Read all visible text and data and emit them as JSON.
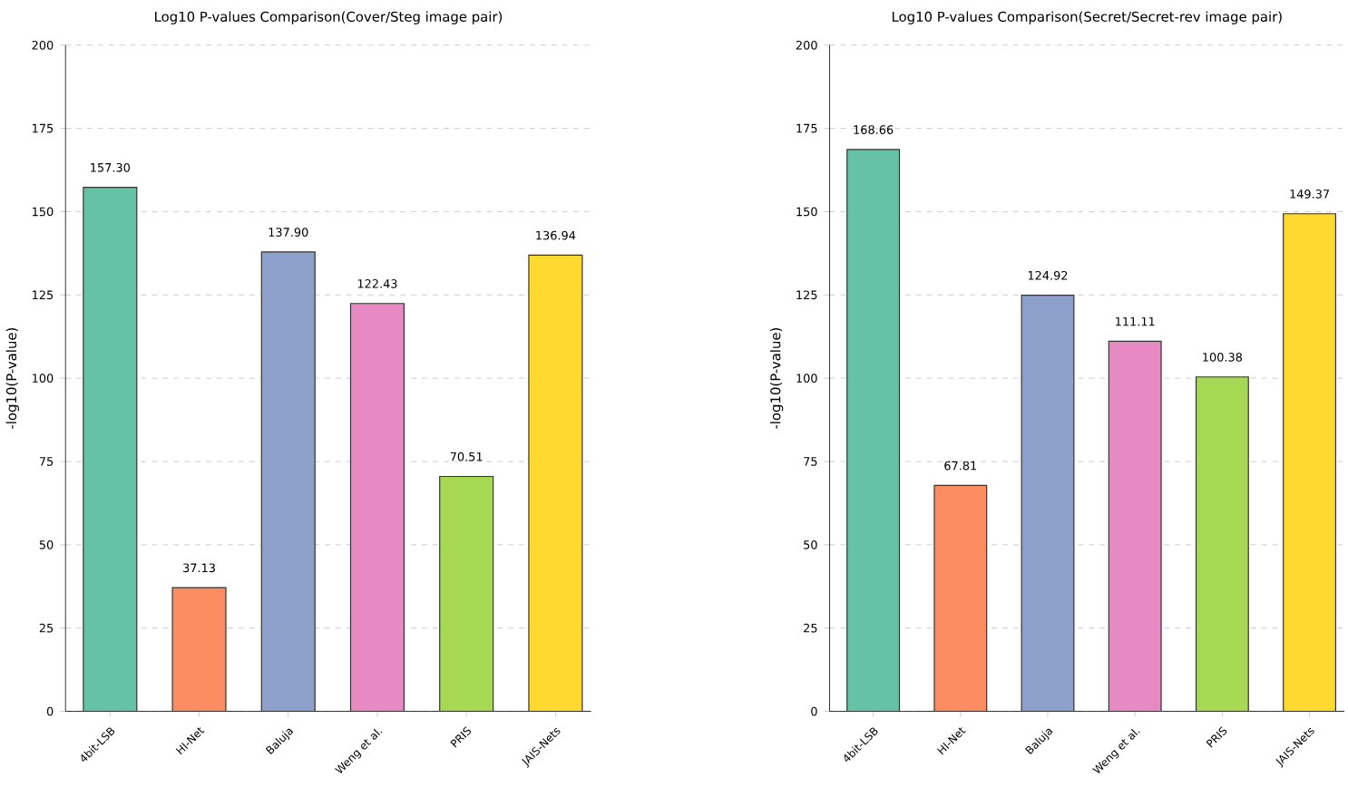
{
  "chart_data": [
    {
      "type": "bar",
      "title": "Log10 P-values Comparison(Cover/Steg image pair)",
      "ylabel": "-log10(P-value)",
      "categories": [
        "4bit-LSB",
        "HI-Net",
        "Baluja",
        "Weng et al.",
        "PRIS",
        "JAIS-Nets"
      ],
      "values": [
        157.3,
        37.13,
        137.9,
        122.43,
        70.51,
        136.94
      ],
      "value_labels": [
        "157.30",
        "37.13",
        "137.90",
        "122.43",
        "70.51",
        "136.94"
      ],
      "colors": [
        "#66c2a5",
        "#fc8d62",
        "#8da0cb",
        "#e78ac3",
        "#a6d854",
        "#ffd92f"
      ],
      "ylim": [
        0,
        200
      ],
      "yticks": [
        0,
        25,
        50,
        75,
        100,
        125,
        150,
        175,
        200
      ],
      "grid": "y"
    },
    {
      "type": "bar",
      "title": "Log10 P-values Comparison(Secret/Secret-rev image pair)",
      "ylabel": "-log10(P-value)",
      "categories": [
        "4bit-LSB",
        "HI-Net",
        "Baluja",
        "Weng et al.",
        "PRIS",
        "JAIS-Nets"
      ],
      "values": [
        168.66,
        67.81,
        124.92,
        111.11,
        100.38,
        149.37
      ],
      "value_labels": [
        "168.66",
        "67.81",
        "124.92",
        "111.11",
        "100.38",
        "149.37"
      ],
      "colors": [
        "#66c2a5",
        "#fc8d62",
        "#8da0cb",
        "#e78ac3",
        "#a6d854",
        "#ffd92f"
      ],
      "ylim": [
        0,
        200
      ],
      "yticks": [
        0,
        25,
        50,
        75,
        100,
        125,
        150,
        175,
        200
      ],
      "grid": "y"
    }
  ]
}
